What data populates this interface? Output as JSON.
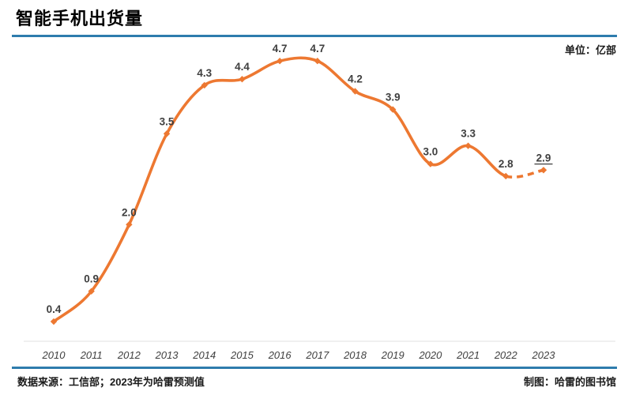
{
  "header": {
    "title": "智能手机出货量",
    "unit_label": "单位：亿部"
  },
  "footer": {
    "source": "数据来源：工信部；2023年为哈雷预测值",
    "credit": "制图：哈雷的图书馆"
  },
  "colors": {
    "line": "#ED7831",
    "accent_rule": "#2E7CAD",
    "data_label": "#3F3F3F",
    "axis": "#E2E2E2"
  },
  "chart_data": {
    "type": "line",
    "title": "智能手机出货量",
    "unit": "亿部",
    "categories": [
      "2010",
      "2011",
      "2012",
      "2013",
      "2014",
      "2015",
      "2016",
      "2017",
      "2018",
      "2019",
      "2020",
      "2021",
      "2022",
      "2023"
    ],
    "series": [
      {
        "name": "智能手机出货量",
        "values": [
          0.4,
          0.9,
          2.0,
          3.5,
          4.3,
          4.4,
          4.7,
          4.7,
          4.2,
          3.9,
          3.0,
          3.3,
          2.8,
          2.9
        ]
      }
    ],
    "data_labels": [
      "0.4",
      "0.9",
      "2.0",
      "3.5",
      "4.3",
      "4.4",
      "4.7",
      "4.7",
      "4.2",
      "3.9",
      "3.0",
      "3.3",
      "2.8",
      "2.9"
    ],
    "dashed_from_index": 12,
    "underlined_label_index": 13,
    "forecast_note": "2023年为预测值（虚线段）",
    "marker": "diamond",
    "smooth": true,
    "grid": false,
    "legend": "none",
    "xlabel": "",
    "ylabel": "亿部",
    "ylim": [
      0,
      5
    ]
  }
}
